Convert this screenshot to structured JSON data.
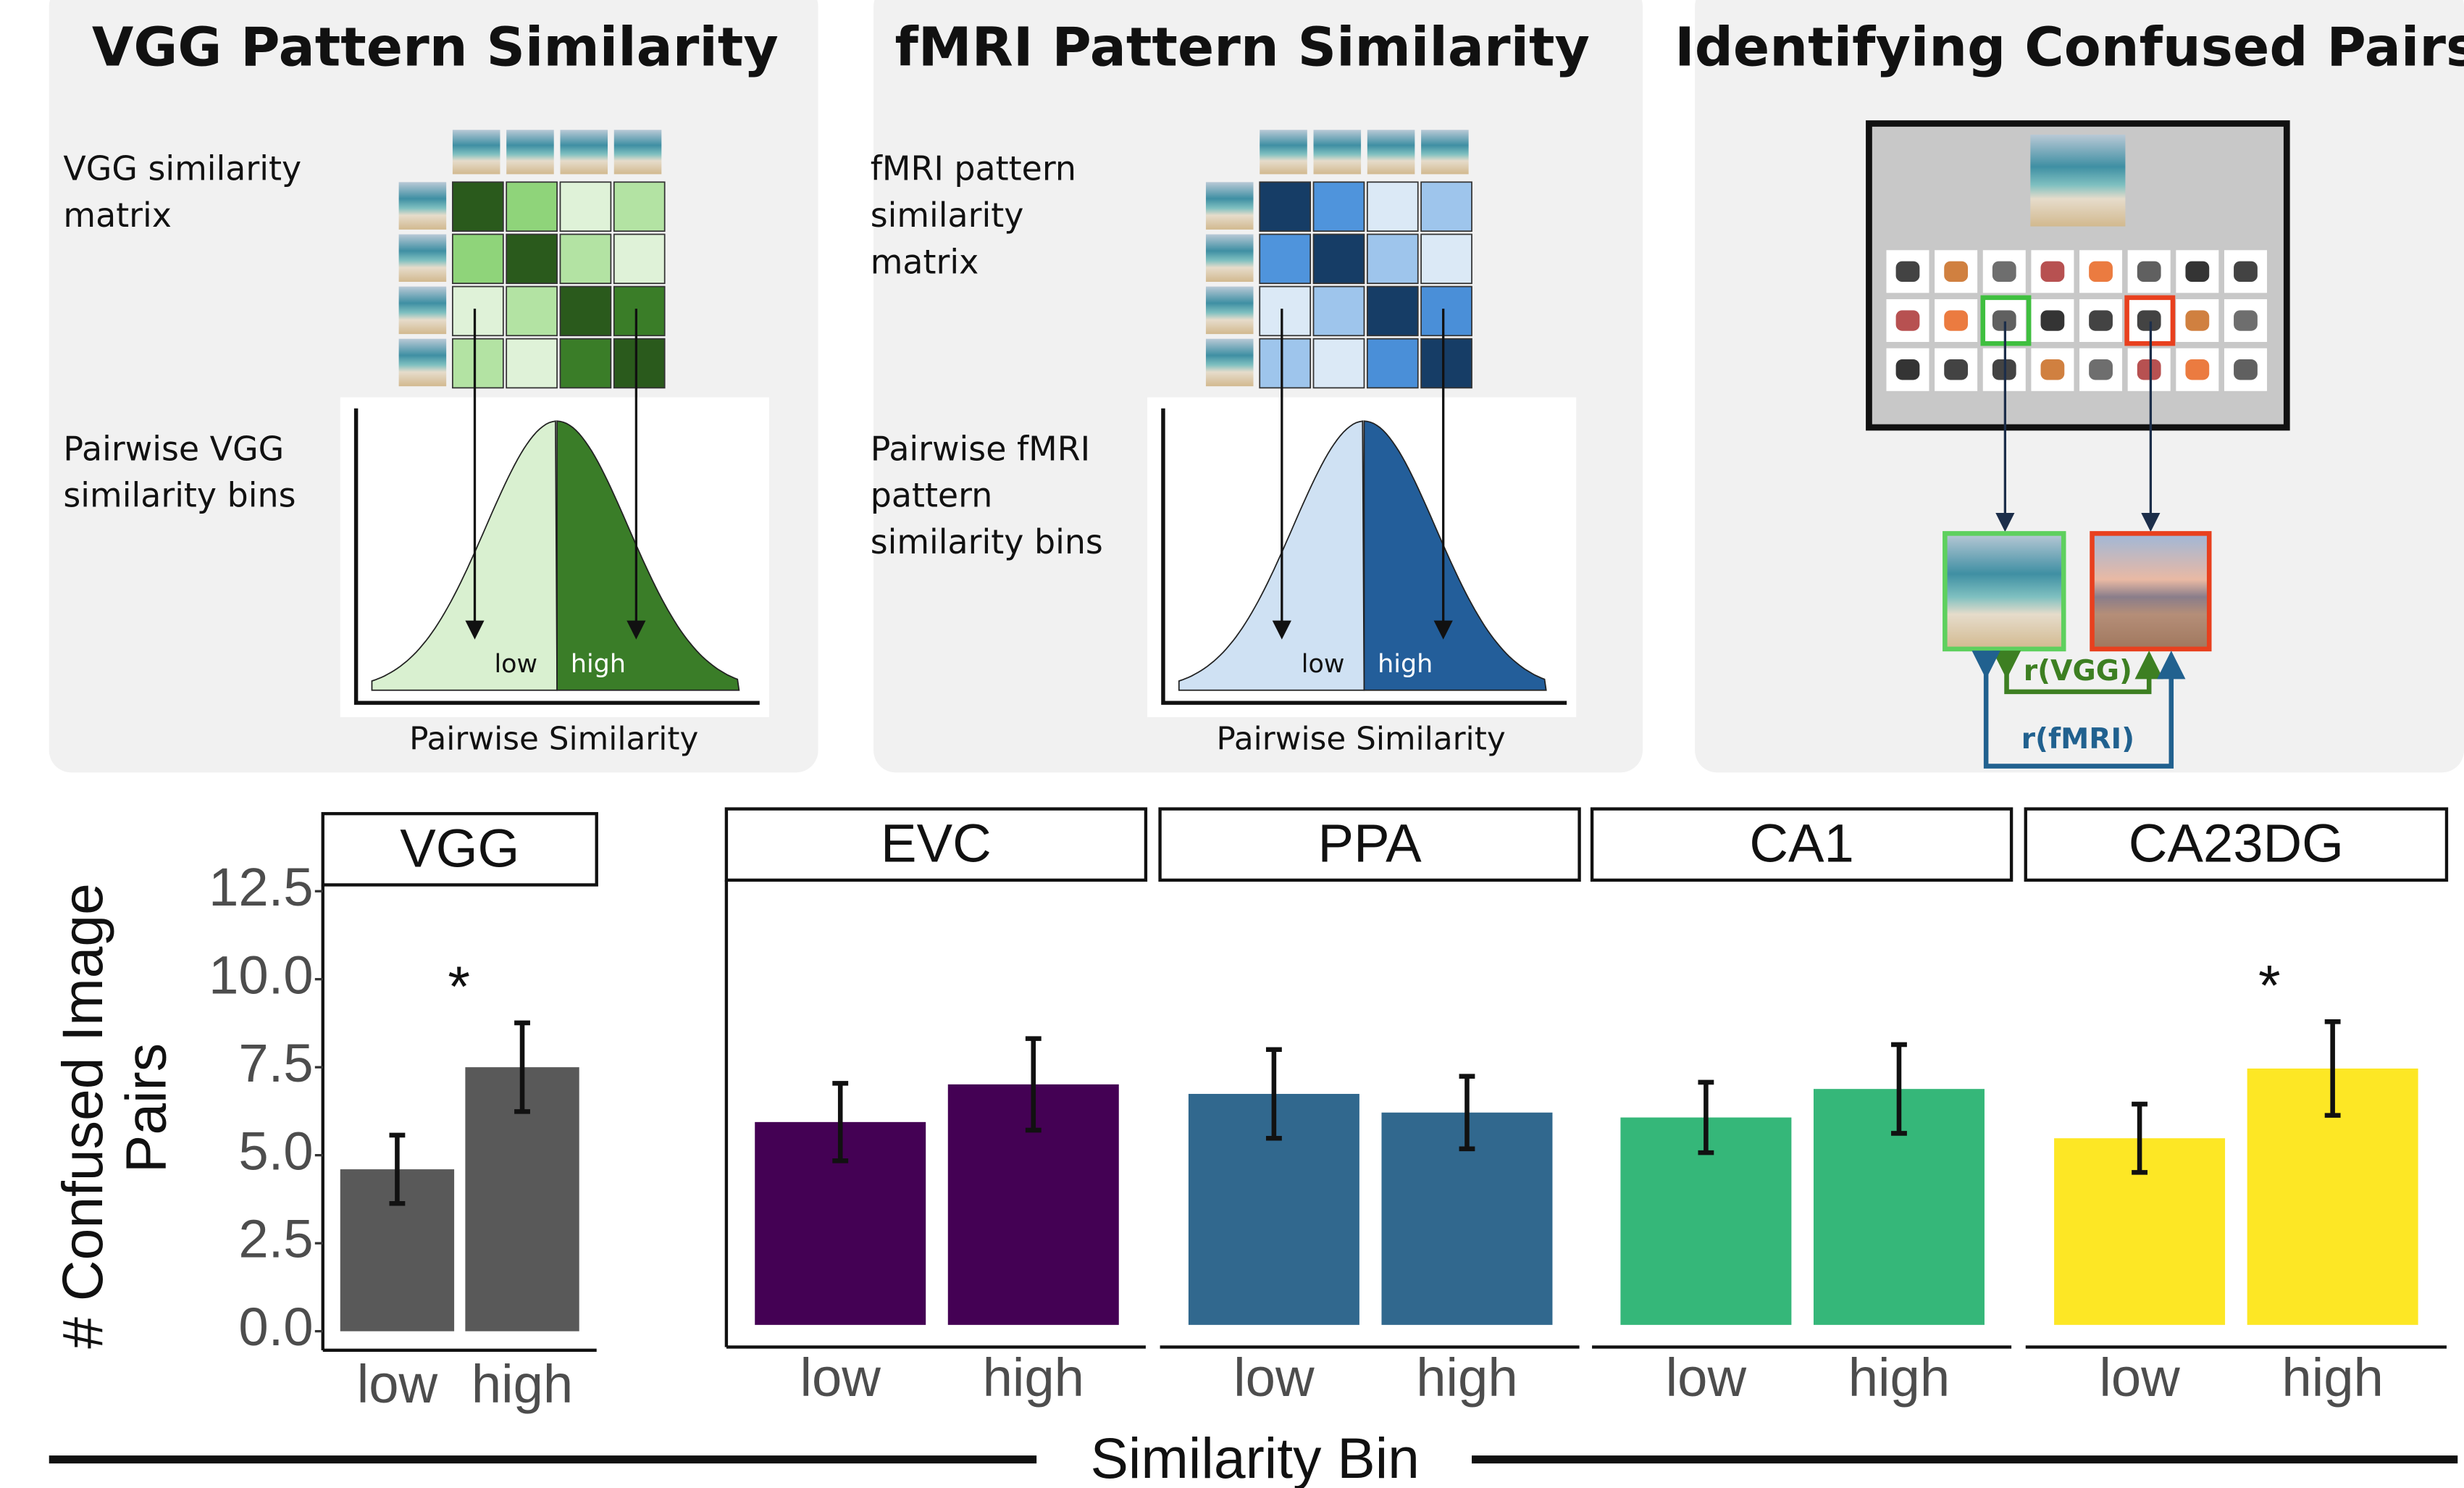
{
  "diagram": {
    "panels": [
      {
        "title": "VGG Pattern Similarity",
        "matrix_label": [
          "VGG similarity",
          "matrix"
        ],
        "bins_label": [
          "Pairwise VGG",
          "similarity bins"
        ],
        "low": "low",
        "high": "high",
        "x_label": "Pairwise Similarity"
      },
      {
        "title": "fMRI Pattern Similarity",
        "matrix_label": [
          "fMRI pattern",
          "similarity",
          "matrix"
        ],
        "bins_label": [
          "Pairwise fMRI",
          "pattern",
          "similarity bins"
        ],
        "low": "low",
        "high": "high",
        "x_label": "Pairwise Similarity"
      },
      {
        "title": "Identifying Confused Pairs",
        "r_vgg": "r(VGG)",
        "r_fmri": "r(fMRI)"
      }
    ]
  },
  "shared": {
    "y_label": [
      "# Confused Image",
      "Pairs"
    ],
    "x_label": "Similarity Bin"
  },
  "chart_data": [
    {
      "type": "bar",
      "title": "VGG",
      "categories": [
        "low",
        "high"
      ],
      "values": [
        4.6,
        7.5
      ],
      "errors": [
        0.97,
        1.26
      ],
      "color": "#595959",
      "ylim": [
        -0.54,
        12.68
      ],
      "yticks": [
        {
          "value": 0,
          "label": "0.0"
        },
        2.5,
        {
          "value": 5,
          "label": "5.0"
        },
        7.5,
        {
          "value": 10,
          "label": "10.0"
        },
        12.5
      ],
      "annotations": [
        {
          "text": "*",
          "at": "high"
        }
      ]
    },
    {
      "type": "bar",
      "title": "EVC",
      "categories": [
        "low",
        "high"
      ],
      "values": [
        5.76,
        6.83
      ],
      "errors": [
        1.1,
        1.3
      ],
      "color": "#440154",
      "ylim": [
        -0.63,
        12.63
      ]
    },
    {
      "type": "bar",
      "title": "PPA",
      "categories": [
        "low",
        "high"
      ],
      "values": [
        6.56,
        6.03
      ],
      "errors": [
        1.26,
        1.03
      ],
      "color": "#31688e",
      "ylim": [
        -0.63,
        12.63
      ]
    },
    {
      "type": "bar",
      "title": "CA1",
      "categories": [
        "low",
        "high"
      ],
      "values": [
        5.89,
        6.7
      ],
      "errors": [
        1.0,
        1.26
      ],
      "color": "#35b779",
      "ylim": [
        -0.63,
        12.63
      ]
    },
    {
      "type": "bar",
      "title": "CA23DG",
      "categories": [
        "low",
        "high"
      ],
      "values": [
        5.3,
        7.28
      ],
      "errors": [
        0.97,
        1.33
      ],
      "color": "#fde725",
      "ylim": [
        -0.63,
        12.63
      ],
      "annotations": [
        {
          "text": "*",
          "at": "high"
        }
      ]
    }
  ]
}
